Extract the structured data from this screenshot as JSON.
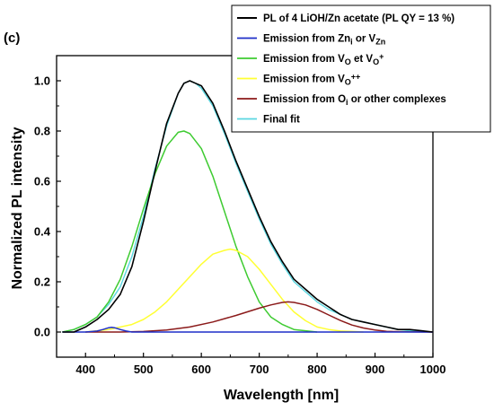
{
  "panel_label": "(c)",
  "chart_data": {
    "type": "line",
    "xlabel": "Wavelength [nm]",
    "ylabel": "Normalized PL intensity",
    "xlim": [
      350,
      1000
    ],
    "ylim": [
      -0.1,
      1.1
    ],
    "x_ticks": [
      400,
      500,
      600,
      700,
      800,
      900,
      1000
    ],
    "y_ticks": [
      0.0,
      0.2,
      0.4,
      0.6,
      0.8,
      1.0
    ],
    "x_tick_labels": [
      "400",
      "500",
      "600",
      "700",
      "800",
      "900",
      "1000"
    ],
    "y_tick_labels": [
      "0.0",
      "0.2",
      "0.4",
      "0.6",
      "0.8",
      "1.0"
    ],
    "grid": false,
    "legend_position": "top-right",
    "series": [
      {
        "name": "PL of 4 LiOH/Zn acetate (PL QY = 13 %)",
        "color": "#000000",
        "x": [
          360,
          380,
          400,
          420,
          440,
          460,
          480,
          500,
          520,
          540,
          560,
          570,
          580,
          590,
          600,
          620,
          640,
          660,
          680,
          700,
          720,
          740,
          760,
          780,
          800,
          820,
          840,
          860,
          880,
          900,
          920,
          940,
          960,
          980,
          1000
        ],
        "y": [
          0.0,
          0.0,
          0.02,
          0.05,
          0.09,
          0.15,
          0.26,
          0.44,
          0.64,
          0.83,
          0.95,
          0.99,
          1.0,
          0.99,
          0.98,
          0.91,
          0.8,
          0.68,
          0.57,
          0.46,
          0.36,
          0.28,
          0.21,
          0.17,
          0.13,
          0.1,
          0.07,
          0.05,
          0.04,
          0.03,
          0.02,
          0.01,
          0.01,
          0.005,
          0.0
        ]
      },
      {
        "name": "Emission from Zni or VZn",
        "color": "#1f2fc8",
        "x": [
          360,
          400,
          420,
          430,
          440,
          445,
          450,
          460,
          470,
          480,
          500,
          600,
          700,
          800,
          900,
          1000
        ],
        "y": [
          0.0,
          0.0,
          0.004,
          0.01,
          0.017,
          0.019,
          0.017,
          0.01,
          0.004,
          0.0,
          0.0,
          0.0,
          0.0,
          0.0,
          0.0,
          0.0
        ]
      },
      {
        "name": "Emission from VO et VO+",
        "color": "#3ecb31",
        "x": [
          360,
          380,
          400,
          420,
          440,
          460,
          480,
          500,
          520,
          540,
          560,
          570,
          580,
          600,
          620,
          640,
          660,
          680,
          700,
          720,
          740,
          760,
          780,
          800
        ],
        "y": [
          0.0,
          0.01,
          0.03,
          0.06,
          0.12,
          0.21,
          0.34,
          0.49,
          0.63,
          0.74,
          0.795,
          0.8,
          0.79,
          0.73,
          0.62,
          0.48,
          0.34,
          0.22,
          0.12,
          0.06,
          0.03,
          0.01,
          0.005,
          0.0
        ]
      },
      {
        "name": "Emission from VO++",
        "color": "#ffff33",
        "x": [
          400,
          440,
          480,
          500,
          520,
          540,
          560,
          580,
          600,
          620,
          640,
          650,
          660,
          680,
          700,
          720,
          740,
          760,
          780,
          800,
          820,
          840,
          860,
          880
        ],
        "y": [
          0.0,
          0.01,
          0.03,
          0.05,
          0.08,
          0.12,
          0.17,
          0.22,
          0.27,
          0.31,
          0.325,
          0.33,
          0.325,
          0.3,
          0.25,
          0.19,
          0.13,
          0.08,
          0.045,
          0.02,
          0.01,
          0.004,
          0.002,
          0.0
        ]
      },
      {
        "name": "Emission from Oi or other complexes",
        "color": "#8b1a1a",
        "x": [
          400,
          460,
          500,
          540,
          580,
          620,
          660,
          700,
          720,
          740,
          750,
          760,
          780,
          800,
          820,
          840,
          860,
          880,
          900,
          920,
          950,
          1000
        ],
        "y": [
          0.0,
          0.0,
          0.002,
          0.008,
          0.02,
          0.04,
          0.066,
          0.095,
          0.108,
          0.118,
          0.12,
          0.118,
          0.108,
          0.09,
          0.068,
          0.046,
          0.028,
          0.016,
          0.008,
          0.003,
          0.001,
          0.0
        ]
      },
      {
        "name": "Final fit",
        "color": "#5ad6e0",
        "x": [
          360,
          380,
          400,
          420,
          440,
          460,
          480,
          500,
          520,
          540,
          560,
          570,
          580,
          590,
          600,
          620,
          640,
          660,
          680,
          700,
          720,
          740,
          760,
          780,
          800,
          820,
          840,
          860,
          880,
          900,
          920,
          940,
          960,
          1000
        ],
        "y": [
          0.0,
          0.01,
          0.03,
          0.06,
          0.11,
          0.18,
          0.3,
          0.46,
          0.65,
          0.82,
          0.95,
          0.99,
          1.0,
          0.99,
          0.97,
          0.9,
          0.79,
          0.67,
          0.56,
          0.45,
          0.35,
          0.27,
          0.2,
          0.16,
          0.12,
          0.09,
          0.07,
          0.05,
          0.04,
          0.03,
          0.02,
          0.01,
          0.005,
          0.0
        ]
      }
    ]
  },
  "legend": {
    "entries": [
      {
        "series": 0,
        "parts": [
          {
            "t": "PL of 4 LiOH/Zn acetate (PL QY = 13 %)"
          }
        ]
      },
      {
        "series": 1,
        "parts": [
          {
            "t": "Emission from Zn"
          },
          {
            "t": "i",
            "sub": true
          },
          {
            "t": " or V"
          },
          {
            "t": "Zn",
            "sub": true
          }
        ]
      },
      {
        "series": 2,
        "parts": [
          {
            "t": "Emission from V"
          },
          {
            "t": "O",
            "sub": true
          },
          {
            "t": " et V"
          },
          {
            "t": "O",
            "sub": true
          },
          {
            "t": "+",
            "sup": true
          }
        ]
      },
      {
        "series": 3,
        "parts": [
          {
            "t": "Emission from V"
          },
          {
            "t": "O",
            "sub": true
          },
          {
            "t": "++",
            "sup": true
          }
        ]
      },
      {
        "series": 4,
        "parts": [
          {
            "t": "Emission from O"
          },
          {
            "t": "i",
            "sub": true
          },
          {
            "t": " or other complexes"
          }
        ]
      },
      {
        "series": 5,
        "parts": [
          {
            "t": "Final fit"
          }
        ]
      }
    ]
  }
}
